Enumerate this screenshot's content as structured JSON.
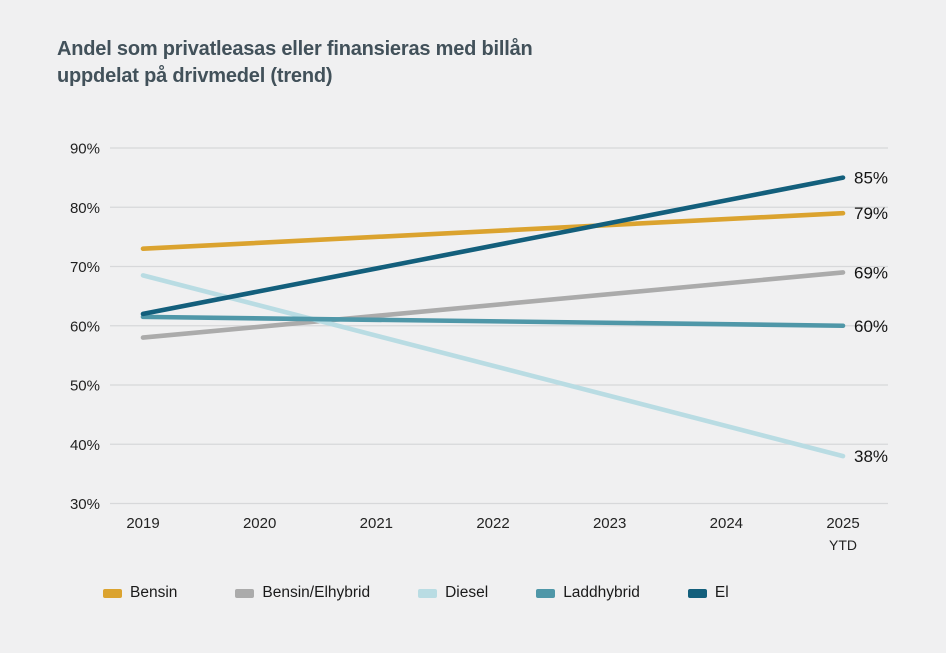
{
  "page": {
    "background_color": "#f0f0f1"
  },
  "header": {
    "title_line1": "Andel som privatleasas eller finansieras med billån",
    "title_line2": "uppdelat på drivmedel (trend)"
  },
  "chart_data": {
    "type": "line",
    "trend": true,
    "title": "Andel som privatleasas eller finansieras med billån uppdelat på drivmedel (trend)",
    "x_labels": [
      "2019",
      "2020",
      "2021",
      "2022",
      "2023",
      "2024",
      "2025"
    ],
    "x_last_label_sub": "YTD",
    "y_tick_labels": [
      "90%",
      "80%",
      "70%",
      "60%",
      "50%",
      "40%",
      "30%"
    ],
    "y_tick_values": [
      90,
      80,
      70,
      60,
      50,
      40,
      30
    ],
    "ylim": [
      30,
      90
    ],
    "grid": true,
    "legend_position": "bottom",
    "gridline_color": "#d7d8da",
    "series": [
      {
        "name": "Bensin",
        "color": "#dba32f",
        "start": 73,
        "end": 79,
        "end_label": "79%"
      },
      {
        "name": "Bensin/Elhybrid",
        "color": "#ababab",
        "start": 58,
        "end": 69,
        "end_label": "69%"
      },
      {
        "name": "Diesel",
        "color": "#b9dce3",
        "start": 68.5,
        "end": 38,
        "end_label": "38%"
      },
      {
        "name": "Laddhybrid",
        "color": "#4f97a8",
        "start": 61.5,
        "end": 60,
        "end_label": "60%"
      },
      {
        "name": "El",
        "color": "#135f7c",
        "start": 62,
        "end": 85,
        "end_label": "85%"
      }
    ]
  }
}
